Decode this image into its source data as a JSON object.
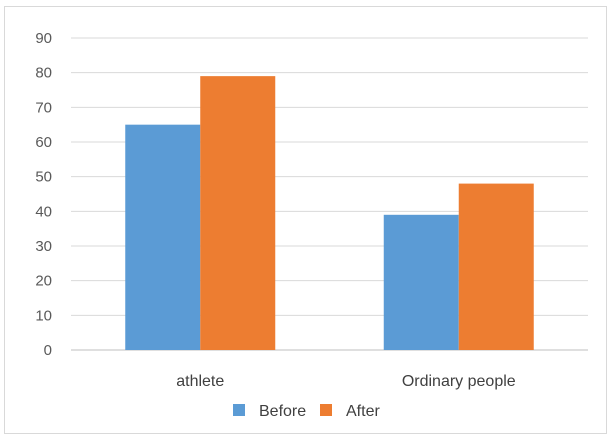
{
  "chart_data": {
    "type": "bar",
    "categories": [
      "athlete",
      "Ordinary people"
    ],
    "series": [
      {
        "name": "Before",
        "values": [
          65,
          39
        ],
        "color": "#5b9bd5"
      },
      {
        "name": "After",
        "values": [
          79,
          48
        ],
        "color": "#ed7d31"
      }
    ],
    "ylim": [
      0,
      90
    ],
    "yticks": [
      0,
      10,
      20,
      30,
      40,
      50,
      60,
      70,
      80,
      90
    ],
    "grid": true,
    "legend": "bottom",
    "title": "",
    "xlabel": "",
    "ylabel": ""
  }
}
